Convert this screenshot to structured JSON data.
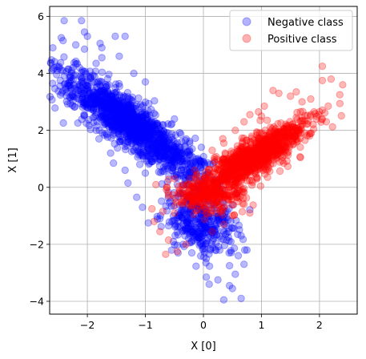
{
  "chart_data": {
    "type": "scatter",
    "xlabel": "X [0]",
    "ylabel": "X [1]",
    "xlim": [
      -2.65,
      2.65
    ],
    "ylim": [
      -4.45,
      6.35
    ],
    "xticks": [
      -2,
      -1,
      0,
      1,
      2
    ],
    "xtick_labels": [
      "−2",
      "−1",
      "0",
      "1",
      "2"
    ],
    "yticks": [
      -4,
      -2,
      0,
      2,
      4,
      6
    ],
    "ytick_labels": [
      "−4",
      "−2",
      "0",
      "2",
      "4",
      "6"
    ],
    "grid": true,
    "legend_position": "top-right",
    "series": [
      {
        "name": "Negative class",
        "color": "#0000ff",
        "points": [
          [
            -2.4,
            5.85
          ],
          [
            -2.45,
            5.25
          ],
          [
            -2.42,
            5.15
          ],
          [
            -2.2,
            5.0
          ],
          [
            -2.05,
            5.45
          ],
          [
            -2.1,
            5.85
          ],
          [
            -2.0,
            5.3
          ],
          [
            -1.78,
            5.05
          ],
          [
            -1.75,
            4.9
          ],
          [
            -1.75,
            4.55
          ],
          [
            -1.52,
            5.3
          ],
          [
            -1.35,
            5.3
          ],
          [
            -1.85,
            4.35
          ],
          [
            -2.05,
            4.85
          ],
          [
            -2.25,
            4.2
          ],
          [
            -2.3,
            3.7
          ],
          [
            -2.15,
            3.55
          ],
          [
            -2.0,
            3.15
          ],
          [
            -1.95,
            3.9
          ],
          [
            -2.1,
            3.3
          ],
          [
            -1.95,
            2.9
          ],
          [
            -1.9,
            2.45
          ],
          [
            -1.85,
            2.0
          ],
          [
            -1.8,
            1.7
          ],
          [
            -1.6,
            1.2
          ],
          [
            -1.55,
            0.85
          ],
          [
            -1.35,
            0.6
          ],
          [
            -1.3,
            0.15
          ],
          [
            -1.15,
            -0.35
          ],
          [
            -1.05,
            -0.7
          ],
          [
            -0.95,
            -1.25
          ],
          [
            -0.75,
            -1.1
          ],
          [
            -0.6,
            -1.35
          ],
          [
            -0.3,
            -1.45
          ],
          [
            -0.05,
            -2.0
          ],
          [
            0.05,
            -3.15
          ],
          [
            0.1,
            -3.4
          ],
          [
            0.25,
            -3.25
          ],
          [
            0.45,
            -3.45
          ],
          [
            0.5,
            -3.55
          ],
          [
            0.35,
            -3.95
          ],
          [
            0.65,
            -3.9
          ],
          [
            0.55,
            -3.05
          ],
          [
            0.45,
            -2.75
          ],
          [
            0.7,
            -2.7
          ],
          [
            0.75,
            -2.2
          ],
          [
            0.65,
            -1.7
          ],
          [
            -0.35,
            -2.0
          ],
          [
            -0.2,
            -2.3
          ],
          [
            -1.0,
            0.5
          ],
          [
            -0.65,
            1.85
          ],
          [
            -0.85,
            2.6
          ],
          [
            -1.0,
            3.7
          ],
          [
            -1.2,
            4.0
          ],
          [
            -0.75,
            1.2
          ],
          [
            -1.2,
            2.5
          ],
          [
            -0.55,
            0.6
          ],
          [
            -0.4,
            -0.2
          ],
          [
            -0.15,
            -0.6
          ],
          [
            0.15,
            -1.6
          ],
          [
            0.05,
            -2.5
          ],
          [
            -1.45,
            4.6
          ],
          [
            -1.6,
            3.2
          ],
          [
            -0.5,
            2.4
          ],
          [
            -0.7,
            2.2
          ],
          [
            0.4,
            -1.85
          ],
          [
            0.6,
            -2.4
          ],
          [
            -0.45,
            0.1
          ],
          [
            -0.25,
            0.3
          ]
        ],
        "clusters": [
          {
            "center": [
              -1.25,
              2.2
            ],
            "count": 1400,
            "axis_dir": [
              0.52,
              -0.85
            ],
            "spread_major": 2.3,
            "spread_minor": 0.24
          },
          {
            "center": [
              -0.05,
              -1.2
            ],
            "count": 350,
            "axis_dir": [
              0.15,
              -0.99
            ],
            "spread_major": 1.1,
            "spread_minor": 0.3
          }
        ]
      },
      {
        "name": "Positive class",
        "color": "#ff0000",
        "points": [
          [
            2.05,
            4.25
          ],
          [
            2.4,
            3.6
          ],
          [
            2.35,
            3.25
          ],
          [
            2.05,
            3.75
          ],
          [
            2.2,
            3.8
          ],
          [
            2.15,
            2.85
          ],
          [
            2.05,
            2.4
          ],
          [
            2.0,
            2.65
          ],
          [
            1.85,
            3.1
          ],
          [
            1.7,
            3.0
          ],
          [
            1.6,
            3.35
          ],
          [
            1.5,
            3.2
          ],
          [
            1.3,
            3.3
          ],
          [
            1.2,
            3.4
          ],
          [
            1.05,
            2.85
          ],
          [
            1.0,
            2.5
          ],
          [
            0.8,
            2.55
          ],
          [
            0.7,
            2.3
          ],
          [
            0.55,
            2.0
          ],
          [
            0.95,
            2.65
          ],
          [
            1.1,
            2.35
          ],
          [
            -0.85,
            -1.2
          ],
          [
            -0.75,
            -1.55
          ],
          [
            -0.6,
            -1.85
          ],
          [
            -0.45,
            -2.25
          ],
          [
            -0.65,
            -2.35
          ],
          [
            -0.3,
            -2.0
          ],
          [
            -0.5,
            -0.9
          ],
          [
            -0.7,
            -0.85
          ],
          [
            0.15,
            -1.55
          ],
          [
            0.35,
            -1.3
          ],
          [
            0.5,
            -1.0
          ],
          [
            0.7,
            -0.6
          ],
          [
            0.8,
            -0.9
          ],
          [
            0.55,
            -0.25
          ],
          [
            0.3,
            0.35
          ],
          [
            -0.35,
            -0.45
          ],
          [
            1.9,
            2.05
          ],
          [
            1.75,
            1.65
          ],
          [
            1.6,
            2.45
          ],
          [
            0.15,
            1.3
          ],
          [
            0.35,
            1.55
          ],
          [
            -0.15,
            0.6
          ]
        ],
        "clusters": [
          {
            "center": [
              0.85,
              1.05
            ],
            "count": 1000,
            "axis_dir": [
              0.55,
              0.84
            ],
            "spread_major": 1.45,
            "spread_minor": 0.22
          },
          {
            "center": [
              0.1,
              -0.3
            ],
            "count": 250,
            "axis_dir": [
              0.5,
              0.87
            ],
            "spread_major": 0.55,
            "spread_minor": 0.3
          }
        ]
      }
    ]
  }
}
